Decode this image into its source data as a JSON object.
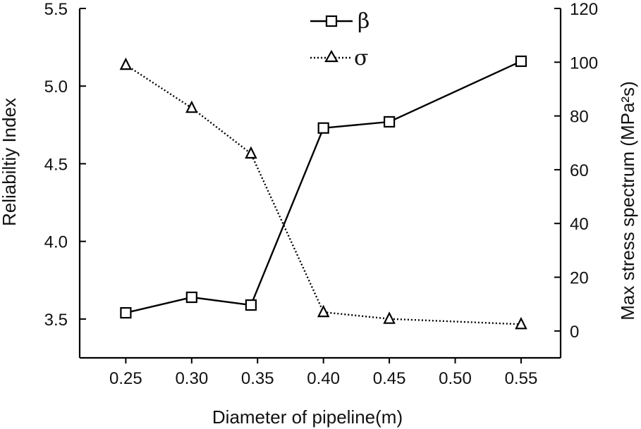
{
  "chart_data": {
    "type": "line",
    "xlabel": "Diameter of pipeline(m)",
    "ylabel": "Reliabiltiy Index",
    "y2label": "Max stress spectrum (MPa²s)",
    "xlim": [
      0.215,
      0.58
    ],
    "ylim": [
      3.25,
      5.5
    ],
    "y2lim": [
      -10,
      120
    ],
    "x_ticks": [
      "0.25",
      "0.30",
      "0.35",
      "0.40",
      "0.45",
      "0.50",
      "0.55"
    ],
    "x_tick_values": [
      0.25,
      0.3,
      0.35,
      0.4,
      0.45,
      0.5,
      0.55
    ],
    "y_ticks": [
      "3.5",
      "4.0",
      "4.5",
      "5.0",
      "5.5"
    ],
    "y_tick_values": [
      3.5,
      4.0,
      4.5,
      5.0,
      5.5
    ],
    "y2_ticks": [
      "0",
      "20",
      "40",
      "60",
      "80",
      "100",
      "120"
    ],
    "y2_tick_values": [
      0,
      20,
      40,
      60,
      80,
      100,
      120
    ],
    "grid": false,
    "legend_position": "top-center",
    "series": [
      {
        "name": "β",
        "axis": "left",
        "marker": "square",
        "line_style": "solid",
        "x": [
          0.25,
          0.3,
          0.345,
          0.4,
          0.45,
          0.55
        ],
        "y": [
          3.54,
          3.64,
          3.59,
          4.73,
          4.77,
          5.16
        ]
      },
      {
        "name": "σ",
        "axis": "right",
        "marker": "triangle",
        "line_style": "dotted",
        "x": [
          0.25,
          0.3,
          0.345,
          0.4,
          0.45,
          0.55
        ],
        "y": [
          99,
          83,
          66,
          7,
          4.5,
          2.5
        ]
      }
    ]
  }
}
